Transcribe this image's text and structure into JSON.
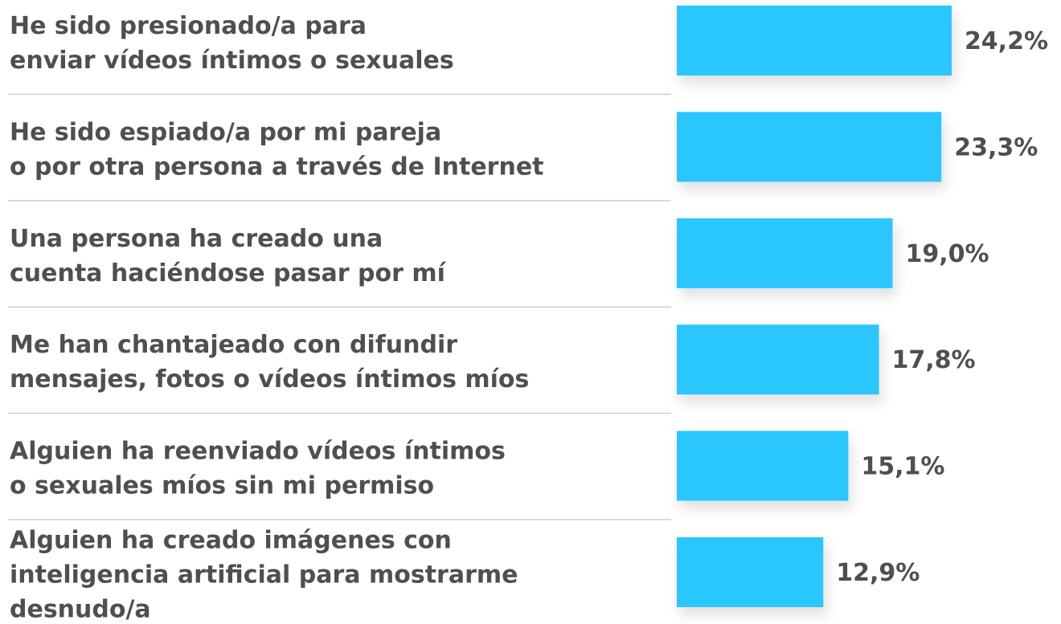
{
  "chart_data": {
    "type": "bar",
    "orientation": "horizontal",
    "color": "#2bc6fe",
    "categories": [
      [
        "He sido presionado/a para",
        "enviar vídeos íntimos o sexuales"
      ],
      [
        "He sido espiado/a por mi pareja",
        "o por otra persona a través de Internet"
      ],
      [
        "Una persona ha creado una",
        "cuenta haciéndose pasar por mí"
      ],
      [
        "Me han chantajeado con difundir",
        "mensajes, fotos o vídeos íntimos míos"
      ],
      [
        "Alguien ha reenviado vídeos íntimos",
        "o sexuales míos sin mi permiso"
      ],
      [
        "Alguien ha creado imágenes con",
        "inteligencia artificial para mostrarme",
        "desnudo/a"
      ]
    ],
    "values": [
      24.2,
      23.3,
      19.0,
      17.8,
      15.1,
      12.9
    ],
    "value_labels": [
      "24,2%",
      "23,3%",
      "19,0%",
      "17,8%",
      "15,1%",
      "12,9%"
    ]
  }
}
